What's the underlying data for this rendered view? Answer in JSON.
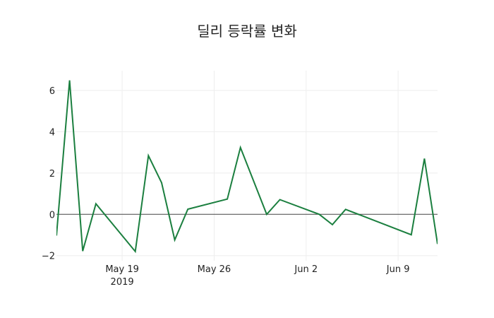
{
  "chart_data": {
    "type": "line",
    "title": "딜리 등락률 변화",
    "xlabel": "",
    "ylabel": "",
    "x": [
      "2019-05-14",
      "2019-05-15",
      "2019-05-16",
      "2019-05-17",
      "2019-05-20",
      "2019-05-21",
      "2019-05-22",
      "2019-05-23",
      "2019-05-24",
      "2019-05-27",
      "2019-05-28",
      "2019-05-29",
      "2019-05-30",
      "2019-05-31",
      "2019-06-03",
      "2019-06-04",
      "2019-06-05",
      "2019-06-10",
      "2019-06-11",
      "2019-06-12"
    ],
    "series": [
      {
        "name": "등락률",
        "color": "#1b7f3f",
        "values": [
          -1.03,
          6.49,
          -1.78,
          0.51,
          -1.8,
          2.84,
          1.53,
          -1.24,
          0.25,
          0.74,
          3.24,
          1.62,
          0.0,
          0.71,
          0.0,
          -0.5,
          0.24,
          -0.99,
          2.7,
          -1.44
        ]
      }
    ],
    "xlim": [
      "2019-05-14",
      "2019-06-12"
    ],
    "ylim": [
      -2.25,
      6.96
    ],
    "x_ticks": [
      {
        "date": "2019-05-19",
        "label": "May 19",
        "sublabel": "2019"
      },
      {
        "date": "2019-05-26",
        "label": "May 26",
        "sublabel": ""
      },
      {
        "date": "2019-06-02",
        "label": "Jun 2",
        "sublabel": ""
      },
      {
        "date": "2019-06-09",
        "label": "Jun 9",
        "sublabel": ""
      }
    ],
    "y_ticks": [
      -2,
      0,
      2,
      4,
      6
    ],
    "y_tick_labels": [
      "−2",
      "0",
      "2",
      "4",
      "6"
    ],
    "grid": true,
    "zero_line": true,
    "legend": "none"
  },
  "colors": {
    "line": "#1b7f3f",
    "grid": "#eeeeee",
    "zero_line": "#444444",
    "text": "#222222",
    "background": "#ffffff"
  }
}
